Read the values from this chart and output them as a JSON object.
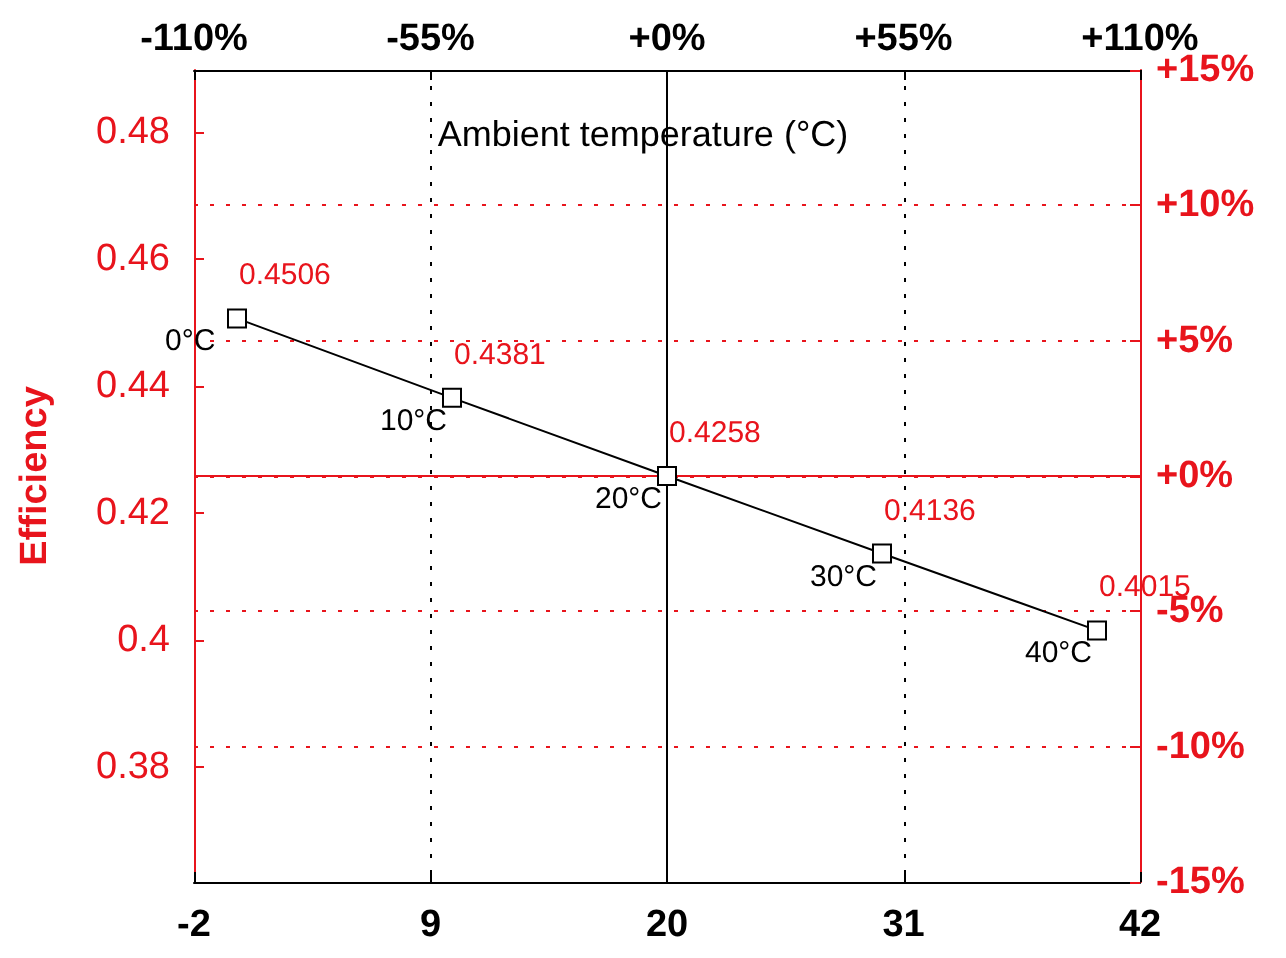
{
  "chart_data": {
    "type": "line",
    "xlabel": "Ambient temperature (°C)",
    "ylabel": "Efficiency",
    "x": [
      0,
      10,
      20,
      30,
      40
    ],
    "series": [
      {
        "color": "#000000",
        "values": [
          0.4506,
          0.4381,
          0.4258,
          0.4136,
          0.4015
        ],
        "value_labels": [
          "0.4506",
          "0.4381",
          "0.4258",
          "0.4136",
          "0.4015"
        ]
      }
    ],
    "marker": "square",
    "line_style": "solid",
    "grid": true,
    "xlim": [
      -2,
      42
    ],
    "xticks": [
      -2,
      9,
      20,
      31,
      42
    ],
    "x2lim": [
      -110,
      110
    ],
    "x2ticks": [
      {
        "value": -110,
        "label": "-110%"
      },
      {
        "value": -55,
        "label": "-55%"
      },
      {
        "value": 0,
        "label": "+0%"
      },
      {
        "value": 55,
        "label": "+55%"
      },
      {
        "value": 110,
        "label": "+110%"
      }
    ],
    "ylim": [
      0.3619,
      0.4897
    ],
    "yticks": [
      0.38,
      0.4,
      0.42,
      0.44,
      0.46,
      0.48
    ],
    "y2lim": [
      -15,
      15
    ],
    "y2ticks": [
      {
        "value": -15,
        "label": "-15%"
      },
      {
        "value": -10,
        "label": "-10%"
      },
      {
        "value": -5,
        "label": "-5%"
      },
      {
        "value": 0,
        "label": "+0%"
      },
      {
        "value": 5,
        "label": "+5%"
      },
      {
        "value": 10,
        "label": "+10%"
      },
      {
        "value": 15,
        "label": "+15%"
      }
    ],
    "ref_lines": [
      {
        "axis": "x",
        "value": 20,
        "color": "#000000"
      },
      {
        "axis": "y2",
        "value": 0,
        "color": "#e8141c"
      }
    ],
    "annotations": [
      {
        "text": "0°C",
        "x": 0,
        "y": 0.4506
      },
      {
        "text": "10°C",
        "x": 10,
        "y": 0.4381
      },
      {
        "text": "20°C",
        "x": 20,
        "y": 0.4258
      },
      {
        "text": "30°C",
        "x": 30,
        "y": 0.4136
      },
      {
        "text": "40°C",
        "x": 40,
        "y": 0.4015
      }
    ]
  }
}
